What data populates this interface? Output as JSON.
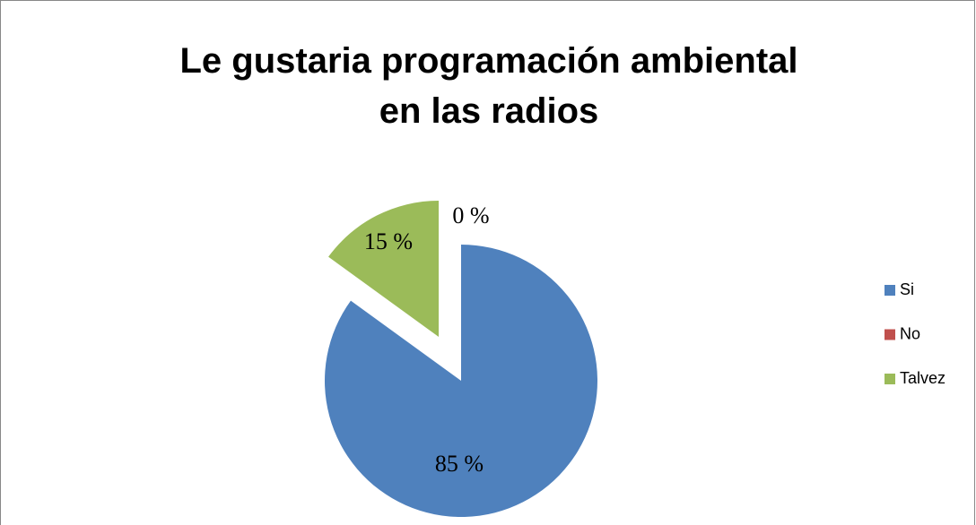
{
  "chart_data": {
    "type": "pie",
    "title": "Le gustaria programación ambiental en las radios",
    "categories": [
      "Si",
      "No",
      "Talvez"
    ],
    "values": [
      85,
      0,
      15
    ],
    "value_labels": [
      "85 %",
      "0 %",
      "15 %"
    ],
    "colors": [
      "#4f81bd",
      "#c0504d",
      "#9bbb59"
    ],
    "exploded": [
      false,
      false,
      true
    ],
    "legend": "right"
  }
}
